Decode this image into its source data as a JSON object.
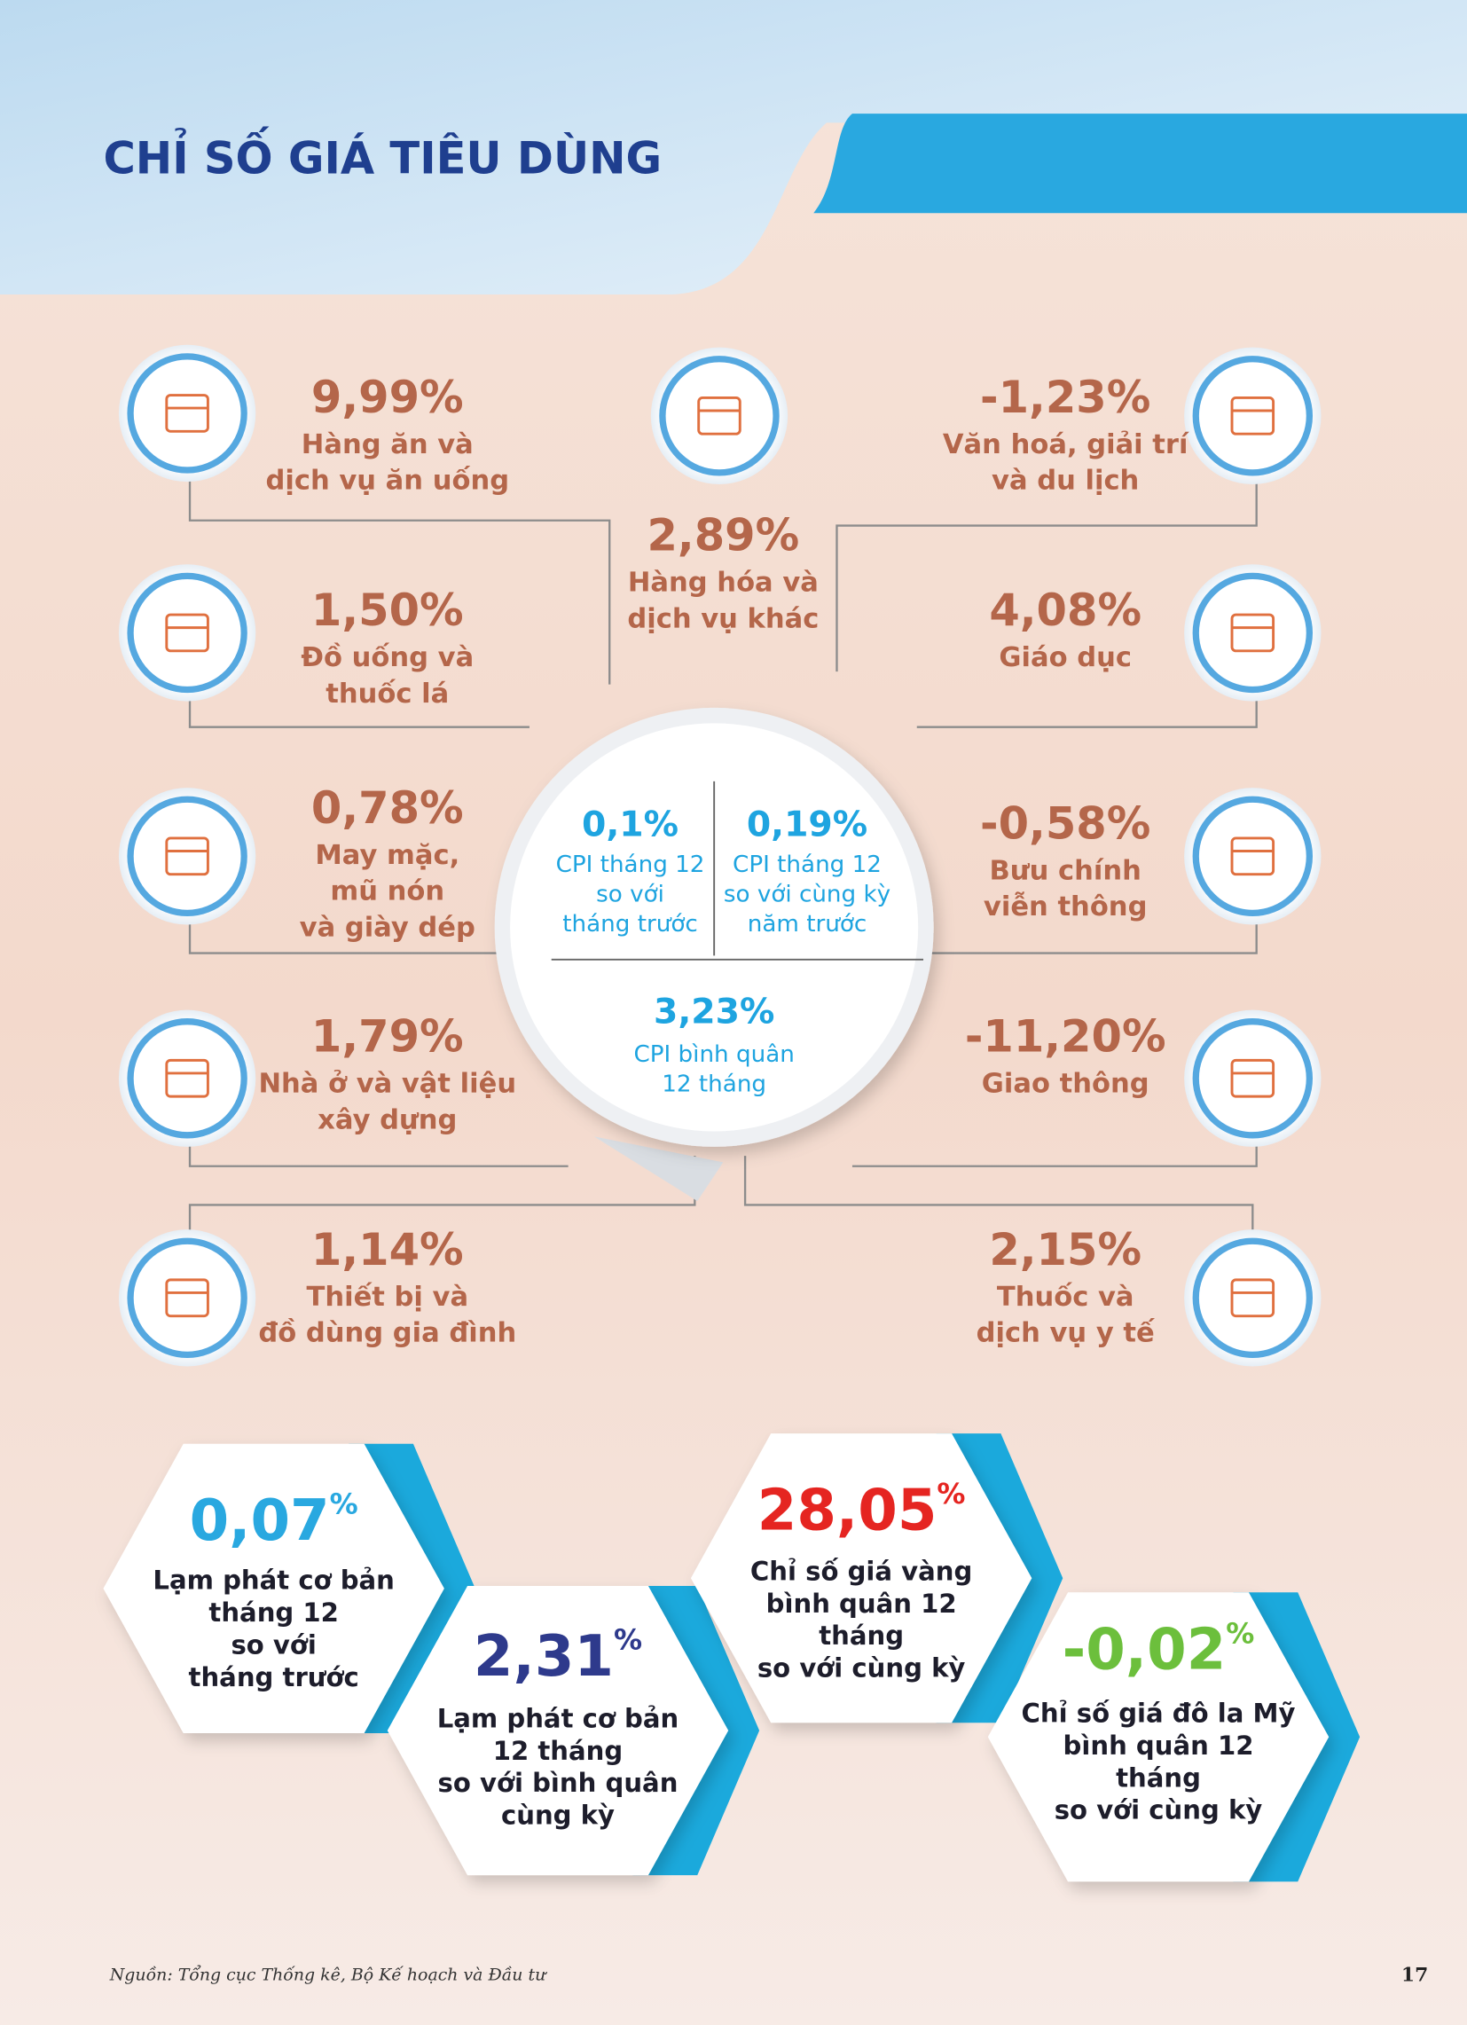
{
  "header": {
    "title": "CHỈ SỐ GIÁ TIÊU DÙNG"
  },
  "items": [
    {
      "value": "9,99%",
      "lines": [
        "Hàng ăn và",
        "dịch vụ ăn uống"
      ]
    },
    {
      "value": "2,89%",
      "lines": [
        "Hàng hóa và",
        "dịch vụ khác"
      ]
    },
    {
      "value": "-1,23%",
      "lines": [
        "Văn hoá, giải trí",
        "và du lịch"
      ]
    },
    {
      "value": "1,50%",
      "lines": [
        "Đồ uống và",
        "thuốc lá"
      ]
    },
    {
      "value": "4,08%",
      "lines": [
        "Giáo dục"
      ]
    },
    {
      "value": "0,78%",
      "lines": [
        "May mặc,",
        "mũ nón",
        "và giày dép"
      ]
    },
    {
      "value": "-0,58%",
      "lines": [
        "Bưu chính",
        "viễn thông"
      ]
    },
    {
      "value": "1,79%",
      "lines": [
        "Nhà ở và vật liệu",
        "xây dựng"
      ]
    },
    {
      "value": "-11,20%",
      "lines": [
        "Giao thông"
      ]
    },
    {
      "value": "1,14%",
      "lines": [
        "Thiết bị và",
        "đồ dùng gia đình"
      ]
    },
    {
      "value": "2,15%",
      "lines": [
        "Thuốc và",
        "dịch vụ y tế"
      ]
    }
  ],
  "center": [
    {
      "value": "0,1%",
      "lines": [
        "CPI tháng 12",
        "so với",
        "tháng trước"
      ]
    },
    {
      "value": "0,19%",
      "lines": [
        "CPI tháng 12",
        "so với cùng kỳ",
        "năm trước"
      ]
    },
    {
      "value": "3,23%",
      "lines": [
        "CPI bình quân",
        "12 tháng"
      ]
    }
  ],
  "highlights": [
    {
      "value": "0,07",
      "unit": "%",
      "lines": [
        "Lạm phát cơ bản",
        "tháng 12",
        "so với",
        "tháng trước"
      ]
    },
    {
      "value": "2,31",
      "unit": "%",
      "lines": [
        "Lạm phát cơ bản",
        "12 tháng",
        "so với bình quân",
        "cùng kỳ"
      ]
    },
    {
      "value": "28,05",
      "unit": "%",
      "lines": [
        "Chỉ số giá vàng",
        "bình quân 12",
        "tháng",
        "so với cùng kỳ"
      ]
    },
    {
      "value": "-0,02",
      "unit": "%",
      "lines": [
        "Chỉ số giá đô la Mỹ",
        "bình quân 12",
        "tháng",
        "so với cùng kỳ"
      ]
    }
  ],
  "footer": {
    "source": "Nguồn: Tổng cục Thống kê, Bộ Kế hoạch và Đầu tư",
    "page_number": "17"
  }
}
